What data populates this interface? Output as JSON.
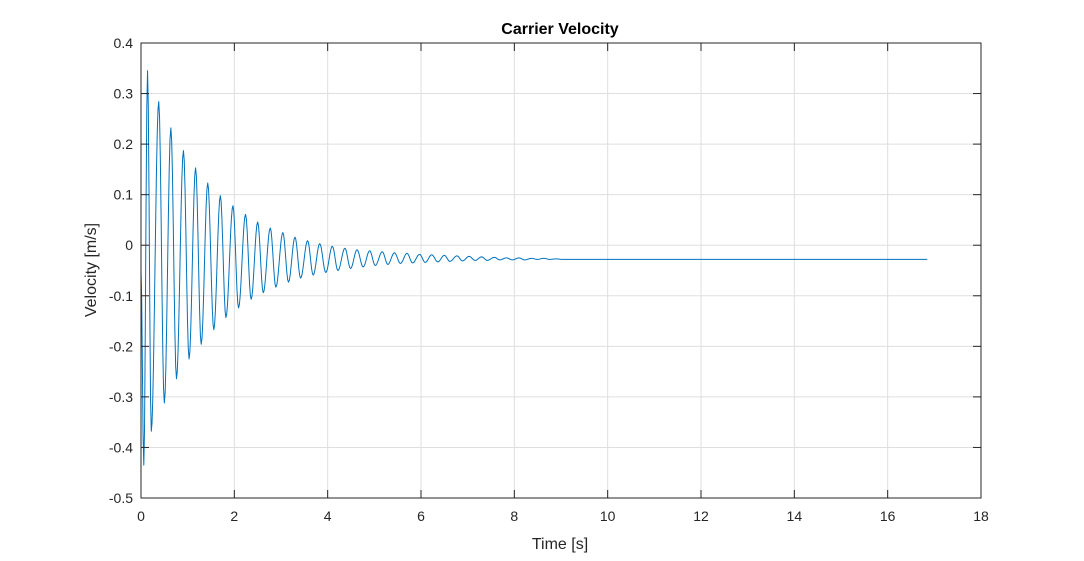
{
  "chart_data": {
    "type": "line",
    "title": "Carrier Velocity",
    "xlabel": "Time [s]",
    "ylabel": "Velocity [m/s]",
    "xlim": [
      0,
      18
    ],
    "ylim": [
      -0.5,
      0.4
    ],
    "xticks": [
      0,
      2,
      4,
      6,
      8,
      10,
      12,
      14,
      16,
      18
    ],
    "yticks": [
      -0.5,
      -0.4,
      -0.3,
      -0.2,
      -0.1,
      0,
      0.1,
      0.2,
      0.3,
      0.4
    ],
    "xtick_labels": [
      "0",
      "2",
      "4",
      "6",
      "8",
      "10",
      "12",
      "14",
      "16",
      "18"
    ],
    "ytick_labels": [
      "-0.5",
      "-0.4",
      "-0.3",
      "-0.2",
      "-0.1",
      "0",
      "0.1",
      "0.2",
      "0.3",
      "0.4"
    ],
    "grid": true,
    "series": [
      {
        "color": "#0072bd",
        "x": [
          0,
          0.06,
          0.14,
          0.22,
          0.38,
          0.5,
          0.64,
          0.76,
          0.91,
          1.03,
          1.17,
          1.29,
          1.43,
          1.56,
          1.7,
          1.82,
          1.97,
          2.09,
          2.24,
          2.36,
          2.5,
          2.62,
          2.77,
          2.89,
          3.04,
          3.16,
          3.3,
          3.42,
          3.57,
          3.69,
          3.83,
          3.96,
          4.1,
          4.22,
          4.37,
          4.49,
          4.63,
          4.76,
          4.9,
          5.02,
          5.17,
          5.29,
          5.43,
          5.56,
          5.7,
          5.82,
          5.97,
          6.09,
          6.23,
          6.36,
          6.5,
          6.62,
          6.77,
          6.89,
          7.03,
          7.16,
          7.3,
          7.42,
          7.57,
          7.69,
          7.83,
          7.96,
          8.1,
          8.22,
          8.37,
          8.49,
          8.63,
          8.76,
          8.9,
          9.02,
          9.3,
          16.85
        ],
        "y": [
          -0.05,
          -0.435,
          0.345,
          -0.368,
          0.284,
          -0.312,
          0.232,
          -0.264,
          0.187,
          -0.225,
          0.153,
          -0.196,
          0.123,
          -0.167,
          0.098,
          -0.143,
          0.078,
          -0.124,
          0.061,
          -0.107,
          0.046,
          -0.094,
          0.034,
          -0.083,
          0.025,
          -0.073,
          0.016,
          -0.065,
          0.009,
          -0.059,
          0.003,
          -0.054,
          -0.002,
          -0.05,
          -0.006,
          -0.046,
          -0.009,
          -0.043,
          -0.011,
          -0.04,
          -0.013,
          -0.038,
          -0.015,
          -0.036,
          -0.016,
          -0.035,
          -0.018,
          -0.034,
          -0.019,
          -0.033,
          -0.02,
          -0.032,
          -0.021,
          -0.031,
          -0.022,
          -0.03,
          -0.023,
          -0.03,
          -0.024,
          -0.029,
          -0.025,
          -0.029,
          -0.025,
          -0.029,
          -0.026,
          -0.028,
          -0.026,
          -0.028,
          -0.027,
          -0.028,
          -0.028,
          -0.028
        ]
      }
    ]
  }
}
